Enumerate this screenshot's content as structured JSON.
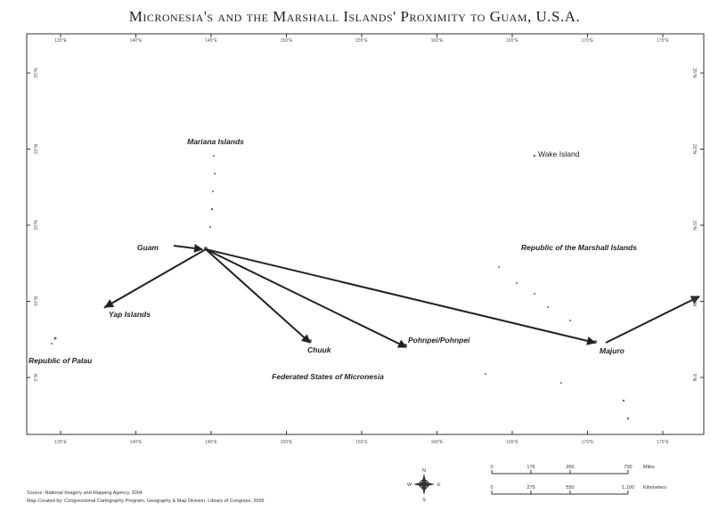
{
  "map": {
    "title": "Micronesia's and the Marshall Islands' Proximity to Guam, U.S.A.",
    "longitudes": [
      "135°E",
      "140°E",
      "145°E",
      "150°E",
      "155°E",
      "160°E",
      "165°E",
      "170°E",
      "175°E"
    ],
    "latitudes": [
      "25°N",
      "20°N",
      "15°N",
      "10°N",
      "5°N"
    ],
    "places": [
      "Mariana Islands",
      "Wake Island",
      "Guam",
      "Republic of the Marshall Islands",
      "Yap Islands",
      "Republic of Palau",
      "Chuuk",
      "Pohnpei/Pohnpei",
      "Majuro",
      "Federated States of Micronesia"
    ],
    "compass": [
      "N",
      "S",
      "E",
      "W"
    ],
    "scale_miles": {
      "ticks": [
        "0",
        "175",
        "350",
        "700"
      ],
      "unit": "Miles"
    },
    "scale_km": {
      "ticks": [
        "0",
        "275",
        "550",
        "1,100"
      ],
      "unit": "Kilometers"
    },
    "source": "Source: National Imagery and Mapping Agency, 2004",
    "credit": "Map Created by: Congressional Cartography Program, Geography & Map Division, Library of Congress, 2005"
  }
}
